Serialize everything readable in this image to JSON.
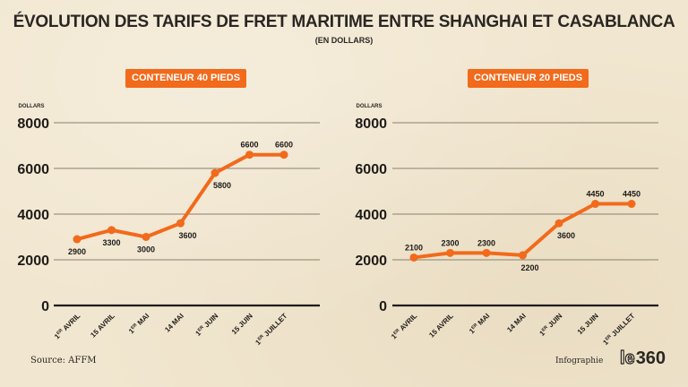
{
  "header": {
    "title": "ÉVOLUTION DES TARIFS DE FRET MARITIME ENTRE SHANGHAI ET CASABLANCA",
    "subtitle": "(EN DOLLARS)"
  },
  "footer": {
    "source": "Source: AFFM",
    "credit": "Infographie",
    "logo_le": "le",
    "logo_num": "360"
  },
  "colors": {
    "accent": "#f26a1b",
    "text": "#2a2622",
    "grid": "#8a7f6d",
    "background": "#f1e6cf"
  },
  "chart_data": [
    {
      "type": "line",
      "title": "CONTENEUR 40 PIEDS",
      "ylabel": "DOLLARS",
      "xlabel": "",
      "ylim": [
        0,
        8000
      ],
      "yticks": [
        0,
        2000,
        4000,
        6000,
        8000
      ],
      "grid": true,
      "categories": [
        "1ER AVRIL",
        "15 AVRIL",
        "1ER MAI",
        "14 MAI",
        "1ER JUIN",
        "15 JUIN",
        "1ER JUILLET"
      ],
      "series": [
        {
          "name": "Conteneur 40 pieds",
          "values": [
            2900,
            3300,
            3000,
            3600,
            5800,
            6600,
            6600
          ]
        }
      ],
      "data_label_positions": [
        "below",
        "below",
        "below",
        "below",
        "below",
        "above",
        "above"
      ]
    },
    {
      "type": "line",
      "title": "CONTENEUR 20 PIEDS",
      "ylabel": "DOLLARS",
      "xlabel": "",
      "ylim": [
        0,
        8000
      ],
      "yticks": [
        0,
        2000,
        4000,
        6000,
        8000
      ],
      "grid": true,
      "categories": [
        "1ER AVRIL",
        "15 AVRIL",
        "1ER MAI",
        "14 MAI",
        "1ER JUIN",
        "15 JUIN",
        "1ER JUILLET"
      ],
      "series": [
        {
          "name": "Conteneur 20 pieds",
          "values": [
            2100,
            2300,
            2300,
            2200,
            3600,
            4450,
            4450
          ]
        }
      ],
      "data_label_positions": [
        "above",
        "above",
        "above",
        "below",
        "below",
        "above",
        "above"
      ]
    }
  ]
}
